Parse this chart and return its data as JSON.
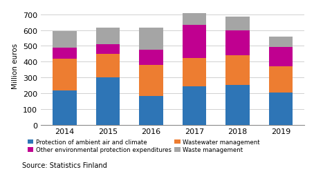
{
  "years": [
    "2014",
    "2015",
    "2016",
    "2017",
    "2018",
    "2019"
  ],
  "protection_air_climate": [
    220,
    300,
    185,
    247,
    255,
    205
  ],
  "wastewater_management": [
    200,
    150,
    195,
    175,
    185,
    165
  ],
  "other_env_protection": [
    70,
    60,
    95,
    210,
    160,
    125
  ],
  "waste_management": [
    105,
    105,
    140,
    75,
    85,
    65
  ],
  "colors": {
    "protection_air_climate": "#2e75b6",
    "wastewater_management": "#ed7d31",
    "other_env_protection": "#c00090",
    "waste_management": "#a5a5a5"
  },
  "ylabel": "Million euros",
  "ylim": [
    0,
    750
  ],
  "yticks": [
    0,
    100,
    200,
    300,
    400,
    500,
    600,
    700
  ],
  "legend_labels": [
    "Protection of ambient air and climate",
    "Wastewater management",
    "Other environmental protection expenditures",
    "Waste management"
  ],
  "source_text": "Source: Statistics Finland"
}
